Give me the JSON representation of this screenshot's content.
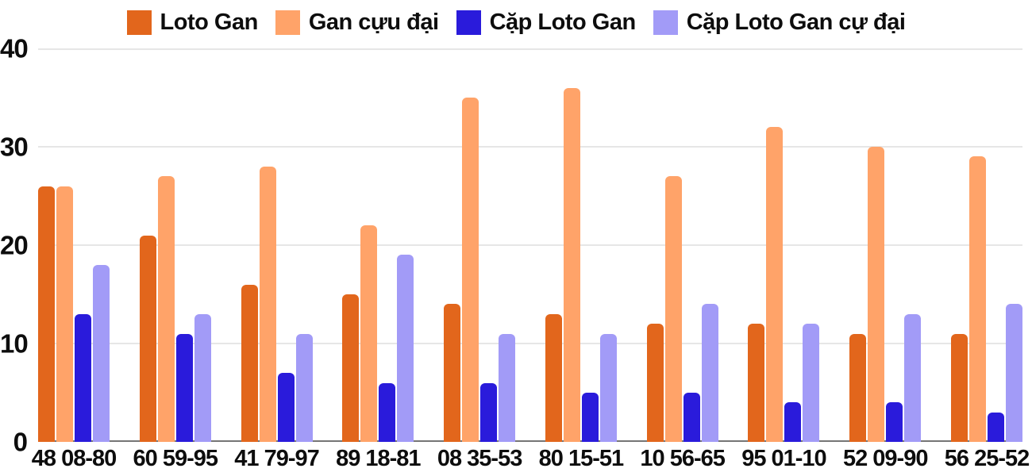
{
  "chart_data": {
    "type": "bar",
    "title": "",
    "xlabel": "",
    "ylabel": "",
    "categories": [
      "48 08-80",
      "60 59-95",
      "41 79-97",
      "89 18-81",
      "08 35-53",
      "80 15-51",
      "10 56-65",
      "95 01-10",
      "52 09-90",
      "56 25-52"
    ],
    "series": [
      {
        "name": "Loto Gan",
        "color": "#e2661c",
        "values": [
          26,
          21,
          16,
          15,
          14,
          13,
          12,
          12,
          11,
          11
        ]
      },
      {
        "name": "Gan cựu đại",
        "color": "#ffa369",
        "values": [
          26,
          27,
          28,
          22,
          35,
          36,
          27,
          32,
          30,
          29
        ]
      },
      {
        "name": "Cặp Loto Gan",
        "color": "#2a1bdb",
        "values": [
          13,
          11,
          7,
          6,
          6,
          5,
          5,
          4,
          4,
          3
        ]
      },
      {
        "name": "Cặp Loto Gan cự đại",
        "color": "#a29bf7",
        "values": [
          18,
          13,
          11,
          19,
          11,
          11,
          14,
          12,
          13,
          14
        ]
      }
    ],
    "ylim": [
      0,
      40
    ],
    "yticks": [
      0,
      10,
      20,
      30,
      40
    ],
    "grid": true,
    "legend_position": "top",
    "colors": {
      "gridline": "#e6e6e6",
      "baseline": "#757575",
      "text": "#0d0d0d",
      "background": "#ffffff"
    }
  }
}
